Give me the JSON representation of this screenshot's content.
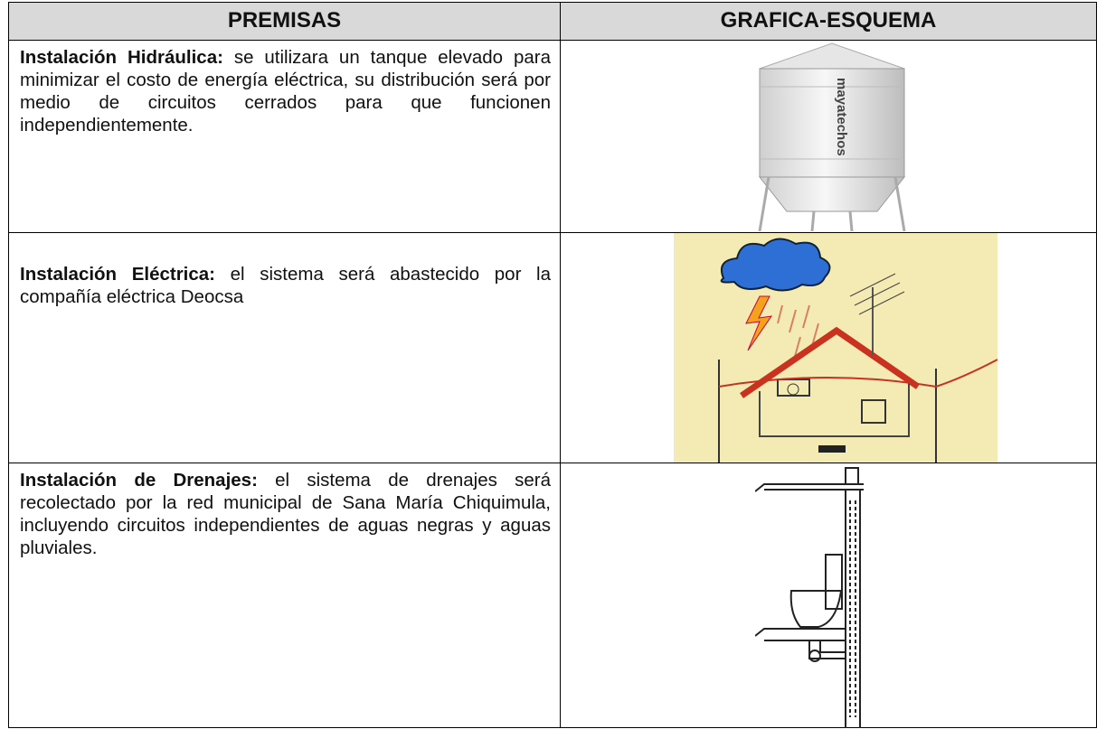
{
  "table": {
    "header": [
      "PREMISAS",
      "GRAFICA-ESQUEMA"
    ],
    "rows": [
      {
        "label": "Instalación Hidráulica:",
        "text": "se utilizara un tanque elevado para minimizar el costo de energía eléctrica, su distribución será por medio de circuitos cerrados para que funcionen independientemente.",
        "image_text": "mayatechos"
      },
      {
        "label": "Instalación Eléctrica:",
        "text": "el sistema será abastecido por la compañía eléctrica Deocsa"
      },
      {
        "label": "Instalación de Drenajes:",
        "text": "el sistema de drenajes será recolectado por la red municipal de Sana María Chiquimula, incluyendo circuitos independientes de aguas negras y aguas pluviales."
      }
    ]
  }
}
